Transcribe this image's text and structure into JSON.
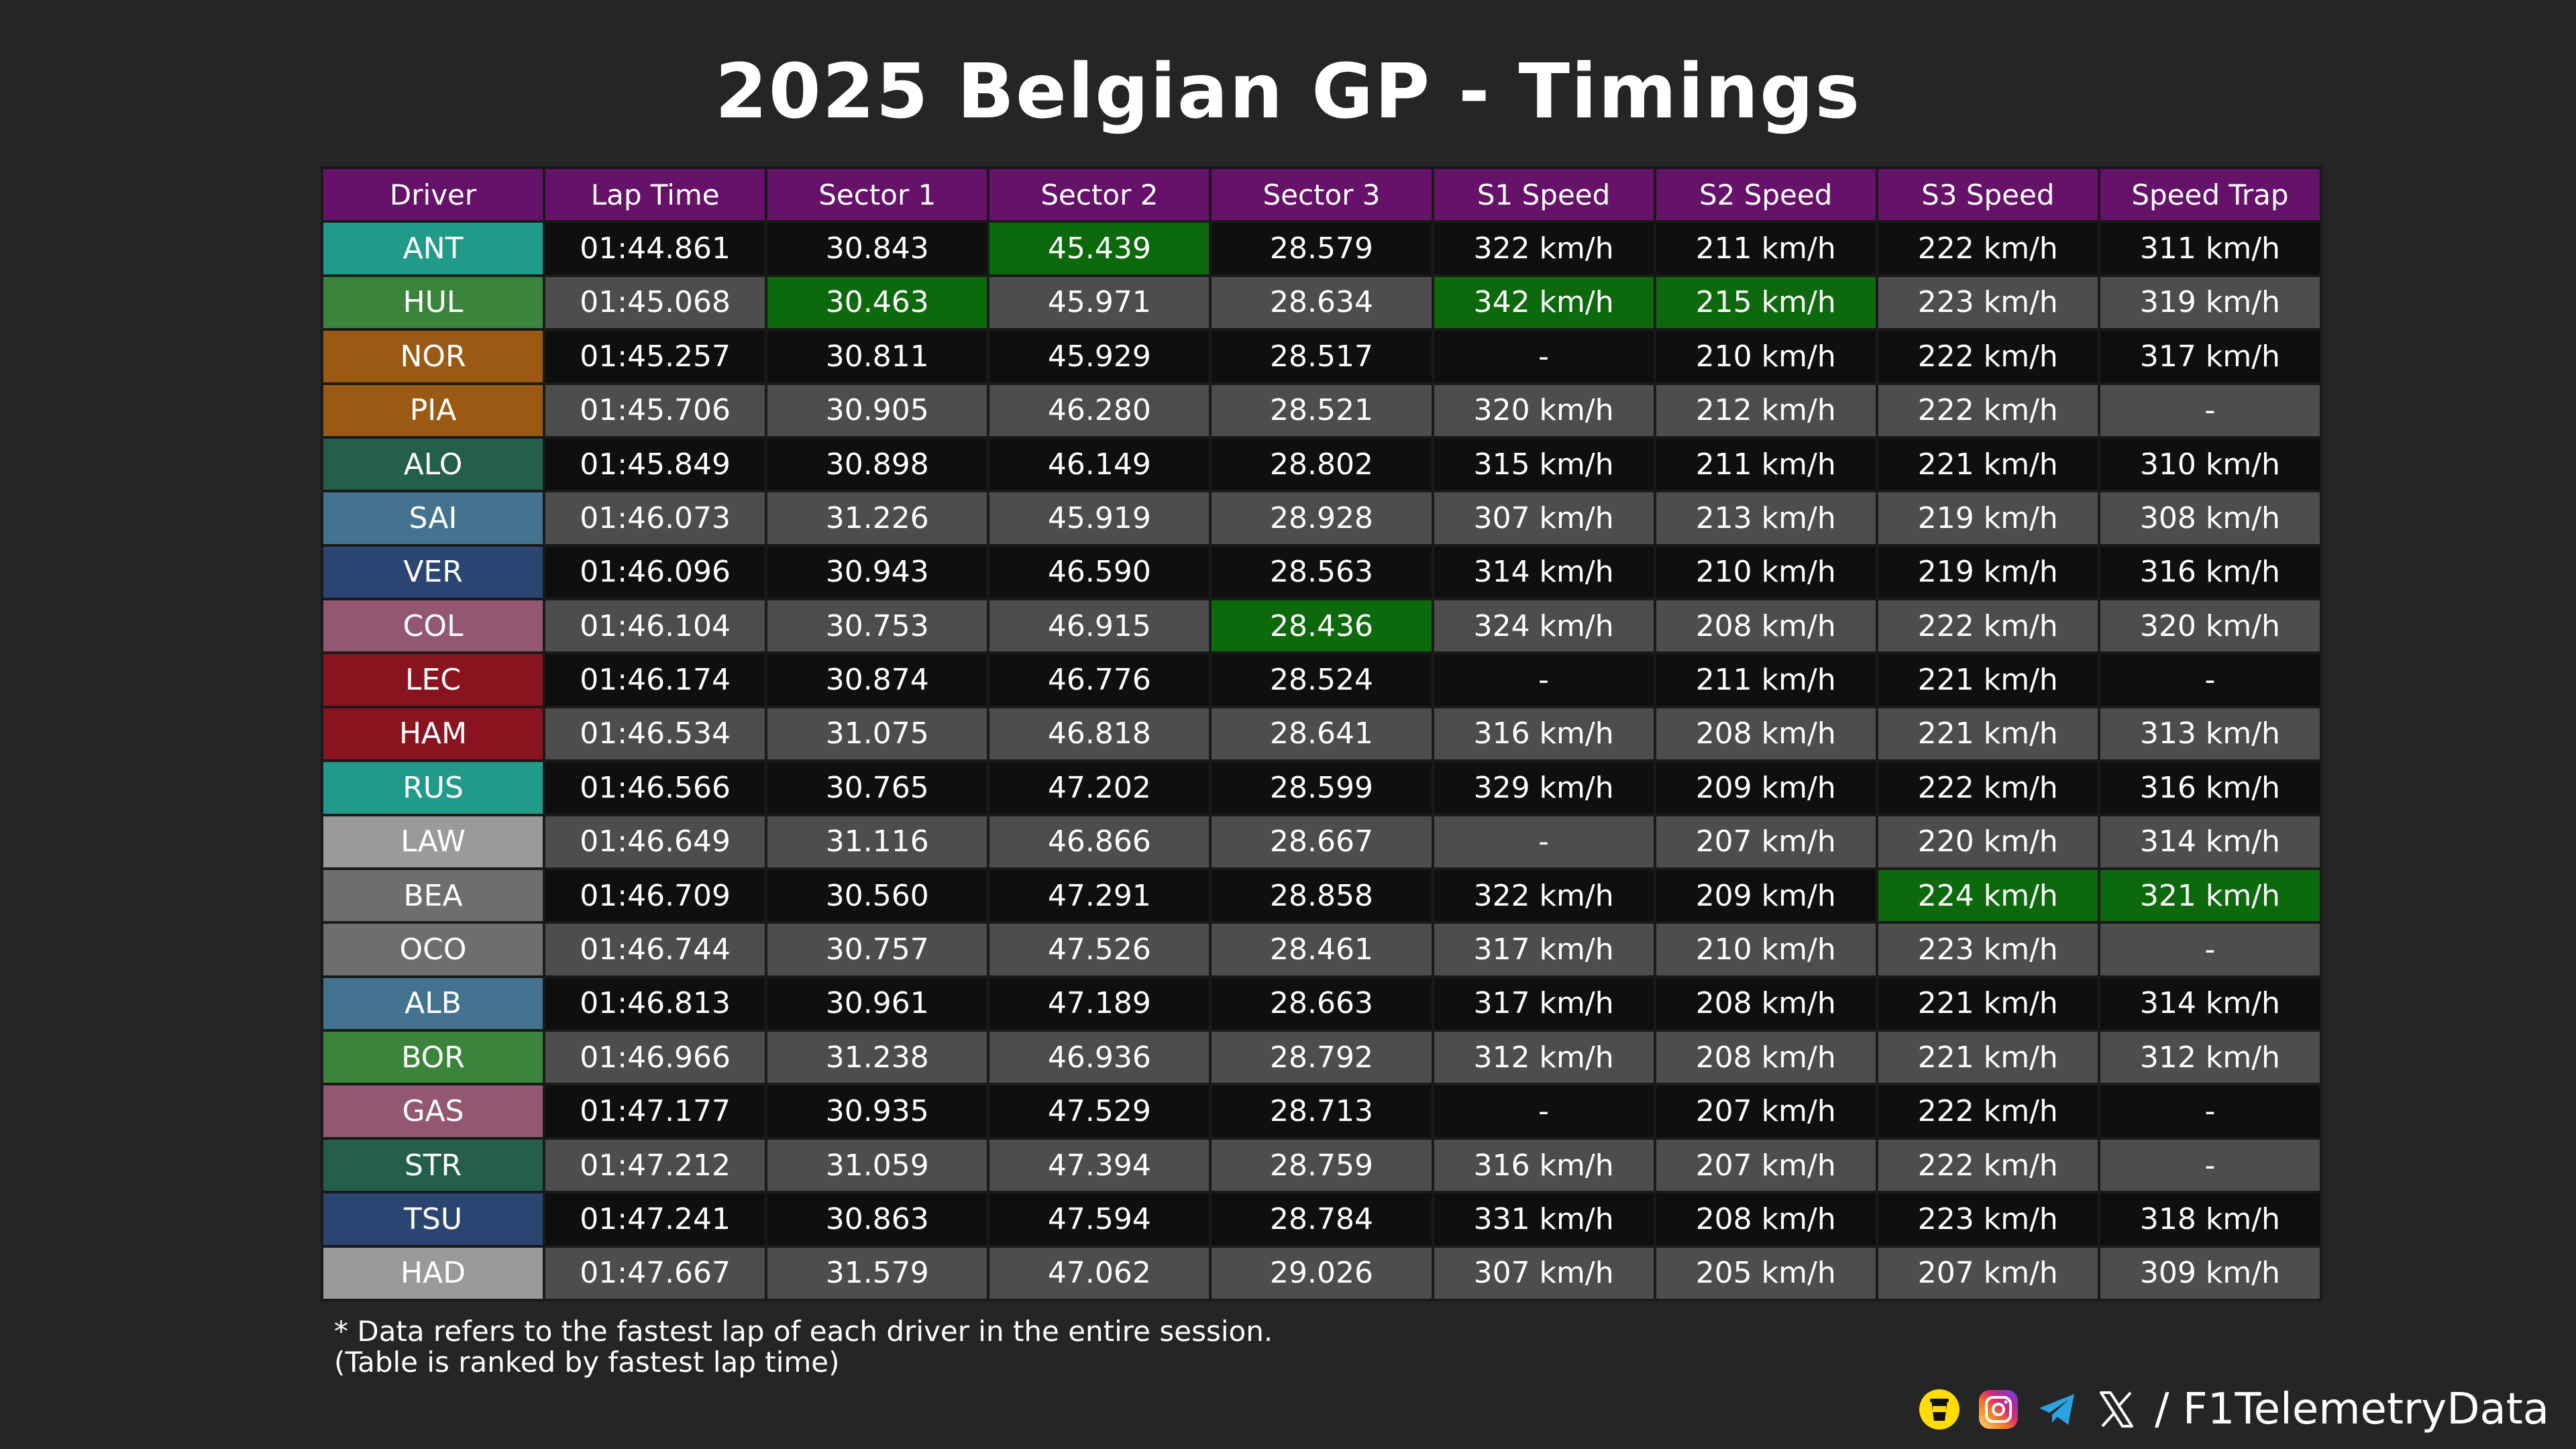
{
  "title": "2025 Belgian GP - Timings",
  "watermark": "@F1TelemetryData",
  "headers": [
    "Driver",
    "Lap Time",
    "Sector 1",
    "Sector 2",
    "Sector 3",
    "S1 Speed",
    "S2 Speed",
    "S3 Speed",
    "Speed Trap"
  ],
  "colors": {
    "header": "#66116a",
    "row_dark": "#0f0f0f",
    "row_light": "#4d4d4d",
    "best": "#0c6a0c"
  },
  "rows": [
    {
      "driver": "ANT",
      "team_color": "#229a8a",
      "lap": "01:44.861",
      "s1": "30.843",
      "s2": "45.439",
      "s3": "28.579",
      "s1_speed": "322 km/h",
      "s2_speed": "211 km/h",
      "s3_speed": "222 km/h",
      "trap": "311 km/h",
      "best": [
        "s2"
      ]
    },
    {
      "driver": "HUL",
      "team_color": "#3b843b",
      "lap": "01:45.068",
      "s1": "30.463",
      "s2": "45.971",
      "s3": "28.634",
      "s1_speed": "342 km/h",
      "s2_speed": "215 km/h",
      "s3_speed": "223 km/h",
      "trap": "319 km/h",
      "best": [
        "s1",
        "s1_speed",
        "s2_speed"
      ]
    },
    {
      "driver": "NOR",
      "team_color": "#9a5a14",
      "lap": "01:45.257",
      "s1": "30.811",
      "s2": "45.929",
      "s3": "28.517",
      "s1_speed": "-",
      "s2_speed": "210 km/h",
      "s3_speed": "222 km/h",
      "trap": "317 km/h",
      "best": []
    },
    {
      "driver": "PIA",
      "team_color": "#9a5a14",
      "lap": "01:45.706",
      "s1": "30.905",
      "s2": "46.280",
      "s3": "28.521",
      "s1_speed": "320 km/h",
      "s2_speed": "212 km/h",
      "s3_speed": "222 km/h",
      "trap": "-",
      "best": []
    },
    {
      "driver": "ALO",
      "team_color": "#245e4c",
      "lap": "01:45.849",
      "s1": "30.898",
      "s2": "46.149",
      "s3": "28.802",
      "s1_speed": "315 km/h",
      "s2_speed": "211 km/h",
      "s3_speed": "221 km/h",
      "trap": "310 km/h",
      "best": []
    },
    {
      "driver": "SAI",
      "team_color": "#43738f",
      "lap": "01:46.073",
      "s1": "31.226",
      "s2": "45.919",
      "s3": "28.928",
      "s1_speed": "307 km/h",
      "s2_speed": "213 km/h",
      "s3_speed": "219 km/h",
      "trap": "308 km/h",
      "best": []
    },
    {
      "driver": "VER",
      "team_color": "#2a4572",
      "lap": "01:46.096",
      "s1": "30.943",
      "s2": "46.590",
      "s3": "28.563",
      "s1_speed": "314 km/h",
      "s2_speed": "210 km/h",
      "s3_speed": "219 km/h",
      "trap": "316 km/h",
      "best": []
    },
    {
      "driver": "COL",
      "team_color": "#93586f",
      "lap": "01:46.104",
      "s1": "30.753",
      "s2": "46.915",
      "s3": "28.436",
      "s1_speed": "324 km/h",
      "s2_speed": "208 km/h",
      "s3_speed": "222 km/h",
      "trap": "320 km/h",
      "best": [
        "s3"
      ]
    },
    {
      "driver": "LEC",
      "team_color": "#8a1320",
      "lap": "01:46.174",
      "s1": "30.874",
      "s2": "46.776",
      "s3": "28.524",
      "s1_speed": "-",
      "s2_speed": "211 km/h",
      "s3_speed": "221 km/h",
      "trap": "-",
      "best": []
    },
    {
      "driver": "HAM",
      "team_color": "#8a1320",
      "lap": "01:46.534",
      "s1": "31.075",
      "s2": "46.818",
      "s3": "28.641",
      "s1_speed": "316 km/h",
      "s2_speed": "208 km/h",
      "s3_speed": "221 km/h",
      "trap": "313 km/h",
      "best": []
    },
    {
      "driver": "RUS",
      "team_color": "#229a8a",
      "lap": "01:46.566",
      "s1": "30.765",
      "s2": "47.202",
      "s3": "28.599",
      "s1_speed": "329 km/h",
      "s2_speed": "209 km/h",
      "s3_speed": "222 km/h",
      "trap": "316 km/h",
      "best": []
    },
    {
      "driver": "LAW",
      "team_color": "#9a9a9a",
      "lap": "01:46.649",
      "s1": "31.116",
      "s2": "46.866",
      "s3": "28.667",
      "s1_speed": "-",
      "s2_speed": "207 km/h",
      "s3_speed": "220 km/h",
      "trap": "314 km/h",
      "best": []
    },
    {
      "driver": "BEA",
      "team_color": "#6e6e6e",
      "lap": "01:46.709",
      "s1": "30.560",
      "s2": "47.291",
      "s3": "28.858",
      "s1_speed": "322 km/h",
      "s2_speed": "209 km/h",
      "s3_speed": "224 km/h",
      "trap": "321 km/h",
      "best": [
        "s3_speed",
        "trap"
      ]
    },
    {
      "driver": "OCO",
      "team_color": "#6e6e6e",
      "lap": "01:46.744",
      "s1": "30.757",
      "s2": "47.526",
      "s3": "28.461",
      "s1_speed": "317 km/h",
      "s2_speed": "210 km/h",
      "s3_speed": "223 km/h",
      "trap": "-",
      "best": []
    },
    {
      "driver": "ALB",
      "team_color": "#43738f",
      "lap": "01:46.813",
      "s1": "30.961",
      "s2": "47.189",
      "s3": "28.663",
      "s1_speed": "317 km/h",
      "s2_speed": "208 km/h",
      "s3_speed": "221 km/h",
      "trap": "314 km/h",
      "best": []
    },
    {
      "driver": "BOR",
      "team_color": "#3b843b",
      "lap": "01:46.966",
      "s1": "31.238",
      "s2": "46.936",
      "s3": "28.792",
      "s1_speed": "312 km/h",
      "s2_speed": "208 km/h",
      "s3_speed": "221 km/h",
      "trap": "312 km/h",
      "best": []
    },
    {
      "driver": "GAS",
      "team_color": "#93586f",
      "lap": "01:47.177",
      "s1": "30.935",
      "s2": "47.529",
      "s3": "28.713",
      "s1_speed": "-",
      "s2_speed": "207 km/h",
      "s3_speed": "222 km/h",
      "trap": "-",
      "best": []
    },
    {
      "driver": "STR",
      "team_color": "#245e4c",
      "lap": "01:47.212",
      "s1": "31.059",
      "s2": "47.394",
      "s3": "28.759",
      "s1_speed": "316 km/h",
      "s2_speed": "207 km/h",
      "s3_speed": "222 km/h",
      "trap": "-",
      "best": []
    },
    {
      "driver": "TSU",
      "team_color": "#2a4572",
      "lap": "01:47.241",
      "s1": "30.863",
      "s2": "47.594",
      "s3": "28.784",
      "s1_speed": "331 km/h",
      "s2_speed": "208 km/h",
      "s3_speed": "223 km/h",
      "trap": "318 km/h",
      "best": []
    },
    {
      "driver": "HAD",
      "team_color": "#9a9a9a",
      "lap": "01:47.667",
      "s1": "31.579",
      "s2": "47.062",
      "s3": "29.026",
      "s1_speed": "307 km/h",
      "s2_speed": "205 km/h",
      "s3_speed": "207 km/h",
      "trap": "309 km/h",
      "best": []
    }
  ],
  "notes": [
    "* Data refers to the fastest lap of each driver in the entire session.",
    "(Table is ranked by fastest lap time)"
  ],
  "footer": {
    "icons": [
      "buymeacoffee-icon",
      "instagram-icon",
      "telegram-icon",
      "x-icon"
    ],
    "handle": "/ F1TelemetryData"
  }
}
